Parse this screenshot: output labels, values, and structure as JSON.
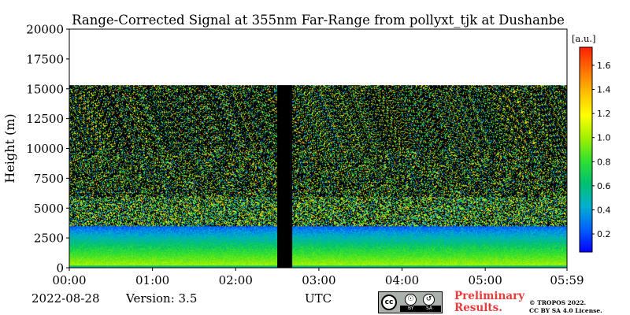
{
  "chart_data": {
    "type": "heatmap",
    "title": "Range-Corrected Signal at 355nm Far-Range from pollyxt_tjk at Dushanbe",
    "xlabel": "UTC",
    "ylabel": "Height (m)",
    "x_tick_labels": [
      "00:00",
      "01:00",
      "02:00",
      "03:00",
      "04:00",
      "05:00",
      "05:59"
    ],
    "x_tick_hours": [
      0,
      1,
      2,
      3,
      4,
      5,
      5.983
    ],
    "xlim_hours": [
      0,
      5.983
    ],
    "y_ticks": [
      0,
      2500,
      5000,
      7500,
      10000,
      12500,
      15000,
      17500,
      20000
    ],
    "y_tick_labels": [
      "0",
      "2500",
      "5000",
      "7500",
      "10000",
      "12500",
      "15000",
      "17500",
      "20000"
    ],
    "ylim": [
      0,
      20000
    ],
    "data_top_height": 15300,
    "missing_data_hours": [
      2.5,
      2.67
    ],
    "colorbar": {
      "unit": "[a.u.]",
      "range": [
        0.05,
        1.75
      ],
      "ticks": [
        0.2,
        0.4,
        0.6,
        0.8,
        1.0,
        1.2,
        1.4,
        1.6
      ],
      "tick_labels": [
        "0.2",
        "0.4",
        "0.6",
        "0.8",
        "1.0",
        "1.2",
        "1.4",
        "1.6"
      ],
      "colormap": [
        "#0000ff",
        "#0060ff",
        "#00b0d0",
        "#00c070",
        "#30e030",
        "#a0f000",
        "#ffff00",
        "#ffc000",
        "#ff7000",
        "#ff2000"
      ]
    },
    "grid": false
  },
  "footer": {
    "date": "2022-08-28",
    "version": "Version: 3.5",
    "preliminary_line1": "Preliminary",
    "preliminary_line2": "Results.",
    "copyright_line1": "© TROPOS 2022.",
    "copyright_line2": "CC BY SA 4.0 License.",
    "license_badge": {
      "cc": "cc",
      "by": "BY",
      "sa": "SA"
    }
  }
}
